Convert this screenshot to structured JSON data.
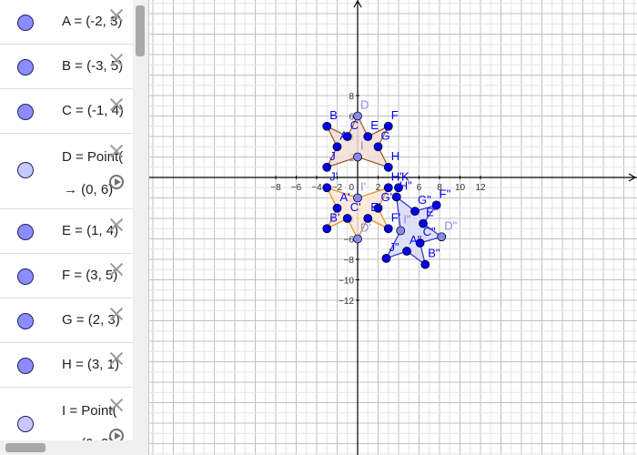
{
  "algebra": {
    "rows": [
      {
        "definition": "A = (-2, 3)",
        "color": "#8c8cff"
      },
      {
        "definition": "B = (-3, 5)",
        "color": "#8c8cff"
      },
      {
        "definition": "C = (-1, 4)",
        "color": "#8c8cff"
      },
      {
        "definition": "D = Point(",
        "value_line": "→  (0, 6)",
        "color": "#c8c8ff"
      },
      {
        "definition": "E = (1, 4)",
        "color": "#8c8cff"
      },
      {
        "definition": "F = (3, 5)",
        "color": "#8c8cff"
      },
      {
        "definition": "G = (2, 3)",
        "color": "#8c8cff"
      },
      {
        "definition": "H = (3, 1)",
        "color": "#8c8cff"
      },
      {
        "definition": "I = Point(",
        "value_line": "→  (0, 2)",
        "color": "#c8c8ff"
      }
    ]
  },
  "graph": {
    "x_ticks": [
      -8,
      -6,
      -4,
      -2,
      2,
      4,
      6,
      8,
      10,
      12
    ],
    "y_ticks": [
      8,
      6,
      4,
      2,
      -2,
      -4,
      -6,
      -8,
      -10,
      -12
    ],
    "origin_label": "0",
    "colors": {
      "point": "#0000e6",
      "dependent_point": "#8a8ae6",
      "label": "#0000ff",
      "dependent_label": "#8a8ae6",
      "star_original_fill": "#f1e0d6",
      "star_original_stroke": "#9a5d31",
      "star_reflected_fill": "#fde9d6",
      "star_reflected_stroke": "#e0922c",
      "star_rotated_fill": "#d8daf8",
      "star_rotated_stroke": "#3a3ad0"
    },
    "polygons": [
      {
        "name": "star-original",
        "vertices": [
          [
            0,
            6
          ],
          [
            1,
            4
          ],
          [
            3,
            5
          ],
          [
            2,
            3
          ],
          [
            3,
            1
          ],
          [
            0,
            2
          ],
          [
            -3,
            1
          ],
          [
            -2,
            3
          ],
          [
            -3,
            5
          ],
          [
            -1,
            4
          ]
        ],
        "fill_key": "star_original_fill",
        "stroke_key": "star_original_stroke"
      },
      {
        "name": "star-reflected",
        "vertices": [
          [
            0,
            -6
          ],
          [
            1,
            -4
          ],
          [
            3,
            -5
          ],
          [
            2,
            -3
          ],
          [
            3,
            -1
          ],
          [
            0,
            -2
          ],
          [
            -3,
            -1
          ],
          [
            -2,
            -3
          ],
          [
            -3,
            -5
          ],
          [
            -1,
            -4
          ]
        ],
        "fill_key": "star_reflected_fill",
        "stroke_key": "star_reflected_stroke"
      },
      {
        "name": "star-rotated",
        "vertices": [
          [
            8.2,
            -5.8
          ],
          [
            6.1,
            -6.4
          ],
          [
            6.6,
            -8.5
          ],
          [
            4.8,
            -7.2
          ],
          [
            2.8,
            -7.9
          ],
          [
            4.2,
            -5.2
          ],
          [
            3.8,
            -1.9
          ],
          [
            5.6,
            -3.3
          ],
          [
            7.7,
            -2.7
          ],
          [
            6.4,
            -4.5
          ]
        ],
        "fill_key": "star_rotated_fill",
        "stroke_key": "star_rotated_stroke"
      }
    ],
    "points": [
      {
        "label": "D",
        "x": 0,
        "y": 6,
        "dep": true
      },
      {
        "label": "E",
        "x": 1,
        "y": 4
      },
      {
        "label": "F",
        "x": 3,
        "y": 5
      },
      {
        "label": "G",
        "x": 2,
        "y": 3
      },
      {
        "label": "H",
        "x": 3,
        "y": 1
      },
      {
        "label": "I",
        "x": 0,
        "y": 2,
        "dep": true
      },
      {
        "label": "J",
        "x": -3,
        "y": 1
      },
      {
        "label": "A",
        "x": -2,
        "y": 3
      },
      {
        "label": "B",
        "x": -3,
        "y": 5
      },
      {
        "label": "C",
        "x": -1,
        "y": 4
      },
      {
        "label": "D'",
        "x": 0,
        "y": -6,
        "dep": true
      },
      {
        "label": "E'",
        "x": 1,
        "y": -4
      },
      {
        "label": "F'",
        "x": 3,
        "y": -5
      },
      {
        "label": "G'",
        "x": 2,
        "y": -3
      },
      {
        "label": "H'",
        "x": 3,
        "y": -1
      },
      {
        "label": "I'",
        "x": 0,
        "y": -2,
        "dep": true
      },
      {
        "label": "J'",
        "x": -3,
        "y": -1
      },
      {
        "label": "A'",
        "x": -2,
        "y": -3
      },
      {
        "label": "B'",
        "x": -3,
        "y": -5
      },
      {
        "label": "C'",
        "x": -1,
        "y": -4
      },
      {
        "label": "K",
        "x": 4,
        "y": -1
      },
      {
        "label": "D\"",
        "x": 8.2,
        "y": -5.8,
        "dep": true
      },
      {
        "label": "C\"",
        "x": 6.1,
        "y": -6.4
      },
      {
        "label": "B\"",
        "x": 6.6,
        "y": -8.5
      },
      {
        "label": "A\"",
        "x": 4.8,
        "y": -7.2
      },
      {
        "label": "J\"",
        "x": 2.8,
        "y": -7.9
      },
      {
        "label": "I\"",
        "x": 4.2,
        "y": -5.2,
        "dep": true
      },
      {
        "label": "H\"",
        "x": 3.8,
        "y": -1.9
      },
      {
        "label": "G\"",
        "x": 5.6,
        "y": -3.3
      },
      {
        "label": "F\"",
        "x": 7.7,
        "y": -2.7
      },
      {
        "label": "E\"",
        "x": 6.4,
        "y": -4.5
      }
    ]
  }
}
